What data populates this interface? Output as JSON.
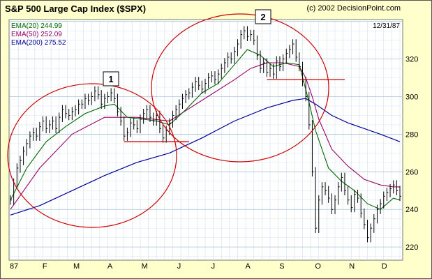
{
  "chart_data": {
    "type": "line",
    "title": "S&P 500 Large Cap Index ($SPX)",
    "source_note": "(c) 2002 DecisionPoint.com",
    "date_label": "12/31/87",
    "legend": [
      {
        "label": "EMA(20) 244.99",
        "color": "#006600"
      },
      {
        "label": "EMA(50) 252.09",
        "color": "#990066"
      },
      {
        "label": "EMA(200) 275.52",
        "color": "#000099"
      }
    ],
    "x_tick_labels": [
      "87",
      "F",
      "M",
      "A",
      "M",
      "J",
      "J",
      "A",
      "S",
      "O",
      "N",
      "D"
    ],
    "y_ticks": [
      220,
      240,
      260,
      280,
      300,
      320
    ],
    "ylim": [
      213,
      341
    ],
    "y_scale": "linear",
    "grid": true,
    "price": [
      [
        1,
        245
      ],
      [
        2,
        254
      ],
      [
        3,
        262
      ],
      [
        4,
        266
      ],
      [
        5,
        271
      ],
      [
        6,
        275
      ],
      [
        7,
        279
      ],
      [
        8,
        281
      ],
      [
        9,
        279
      ],
      [
        10,
        284
      ],
      [
        11,
        287
      ],
      [
        12,
        283
      ],
      [
        13,
        285
      ],
      [
        14,
        287
      ],
      [
        15,
        283
      ],
      [
        16,
        289
      ],
      [
        17,
        293
      ],
      [
        18,
        291
      ],
      [
        19,
        290
      ],
      [
        20,
        292
      ],
      [
        21,
        293
      ],
      [
        22,
        296
      ],
      [
        23,
        296
      ],
      [
        24,
        299
      ],
      [
        25,
        298
      ],
      [
        26,
        300
      ],
      [
        27,
        303
      ],
      [
        28,
        301
      ],
      [
        29,
        296
      ],
      [
        30,
        299
      ],
      [
        31,
        300
      ],
      [
        32,
        302
      ],
      [
        33,
        299
      ],
      [
        34,
        292
      ],
      [
        35,
        287
      ],
      [
        36,
        279
      ],
      [
        37,
        281
      ],
      [
        38,
        286
      ],
      [
        39,
        285
      ],
      [
        40,
        283
      ],
      [
        41,
        288
      ],
      [
        42,
        291
      ],
      [
        43,
        293
      ],
      [
        44,
        289
      ],
      [
        45,
        287
      ],
      [
        46,
        290
      ],
      [
        47,
        283
      ],
      [
        48,
        278
      ],
      [
        49,
        282
      ],
      [
        50,
        286
      ],
      [
        51,
        290
      ],
      [
        52,
        293
      ],
      [
        53,
        296
      ],
      [
        54,
        299
      ],
      [
        55,
        301
      ],
      [
        56,
        302
      ],
      [
        57,
        305
      ],
      [
        58,
        308
      ],
      [
        59,
        306
      ],
      [
        60,
        304
      ],
      [
        61,
        307
      ],
      [
        62,
        310
      ],
      [
        63,
        311
      ],
      [
        64,
        309
      ],
      [
        65,
        312
      ],
      [
        66,
        315
      ],
      [
        67,
        318
      ],
      [
        68,
        321
      ],
      [
        69,
        320
      ],
      [
        70,
        324
      ],
      [
        71,
        328
      ],
      [
        72,
        333
      ],
      [
        73,
        335
      ],
      [
        74,
        332
      ],
      [
        75,
        333
      ],
      [
        76,
        330
      ],
      [
        77,
        322
      ],
      [
        78,
        315
      ],
      [
        79,
        318
      ],
      [
        80,
        313
      ],
      [
        81,
        315
      ],
      [
        82,
        312
      ],
      [
        83,
        319
      ],
      [
        84,
        316
      ],
      [
        85,
        320
      ],
      [
        86,
        323
      ],
      [
        87,
        325
      ],
      [
        88,
        328
      ],
      [
        89,
        321
      ],
      [
        90,
        316
      ],
      [
        91,
        308
      ],
      [
        92,
        300
      ],
      [
        93,
        285
      ],
      [
        94,
        260
      ],
      [
        95,
        230
      ],
      [
        96,
        245
      ],
      [
        97,
        252
      ],
      [
        98,
        250
      ],
      [
        99,
        246
      ],
      [
        100,
        240
      ],
      [
        101,
        245
      ],
      [
        102,
        252
      ],
      [
        103,
        257
      ],
      [
        104,
        250
      ],
      [
        105,
        245
      ],
      [
        106,
        241
      ],
      [
        107,
        248
      ],
      [
        108,
        246
      ],
      [
        109,
        238
      ],
      [
        110,
        232
      ],
      [
        111,
        225
      ],
      [
        112,
        230
      ],
      [
        113,
        235
      ],
      [
        114,
        240
      ],
      [
        115,
        243
      ],
      [
        116,
        247
      ],
      [
        117,
        249
      ],
      [
        118,
        251
      ],
      [
        119,
        253
      ],
      [
        120,
        250
      ],
      [
        121,
        247
      ]
    ],
    "ema20": [
      [
        1,
        245
      ],
      [
        6,
        262
      ],
      [
        12,
        276
      ],
      [
        18,
        284
      ],
      [
        24,
        291
      ],
      [
        30,
        295
      ],
      [
        33,
        296
      ],
      [
        37,
        289
      ],
      [
        42,
        288
      ],
      [
        46,
        287
      ],
      [
        50,
        285
      ],
      [
        55,
        293
      ],
      [
        60,
        302
      ],
      [
        65,
        307
      ],
      [
        70,
        317
      ],
      [
        74,
        325
      ],
      [
        78,
        322
      ],
      [
        82,
        316
      ],
      [
        86,
        318
      ],
      [
        90,
        317
      ],
      [
        93,
        297
      ],
      [
        95,
        282
      ],
      [
        99,
        262
      ],
      [
        103,
        255
      ],
      [
        107,
        250
      ],
      [
        111,
        243
      ],
      [
        115,
        240
      ],
      [
        119,
        246
      ],
      [
        121,
        245
      ]
    ],
    "ema50": [
      [
        1,
        240
      ],
      [
        10,
        262
      ],
      [
        20,
        280
      ],
      [
        30,
        289
      ],
      [
        40,
        289
      ],
      [
        50,
        287
      ],
      [
        60,
        298
      ],
      [
        70,
        309
      ],
      [
        75,
        315
      ],
      [
        80,
        318
      ],
      [
        85,
        318
      ],
      [
        90,
        316
      ],
      [
        92,
        310
      ],
      [
        94,
        300
      ],
      [
        96,
        288
      ],
      [
        100,
        272
      ],
      [
        105,
        263
      ],
      [
        110,
        256
      ],
      [
        115,
        253
      ],
      [
        119,
        252
      ],
      [
        121,
        252
      ]
    ],
    "ema200": [
      [
        1,
        237
      ],
      [
        10,
        242
      ],
      [
        20,
        250
      ],
      [
        30,
        258
      ],
      [
        40,
        265
      ],
      [
        50,
        270
      ],
      [
        60,
        278
      ],
      [
        70,
        287
      ],
      [
        80,
        294
      ],
      [
        88,
        298
      ],
      [
        92,
        299
      ],
      [
        95,
        296
      ],
      [
        100,
        290
      ],
      [
        105,
        286
      ],
      [
        110,
        283
      ],
      [
        115,
        280
      ],
      [
        121,
        276
      ]
    ],
    "annotations": {
      "circles": [
        {
          "label": "1"
        },
        {
          "label": "2"
        }
      ],
      "support_lines": [
        {
          "x1": 36,
          "x2": 56,
          "y": 276
        },
        {
          "x1": 80,
          "x2": 104,
          "y": 309
        }
      ]
    }
  }
}
